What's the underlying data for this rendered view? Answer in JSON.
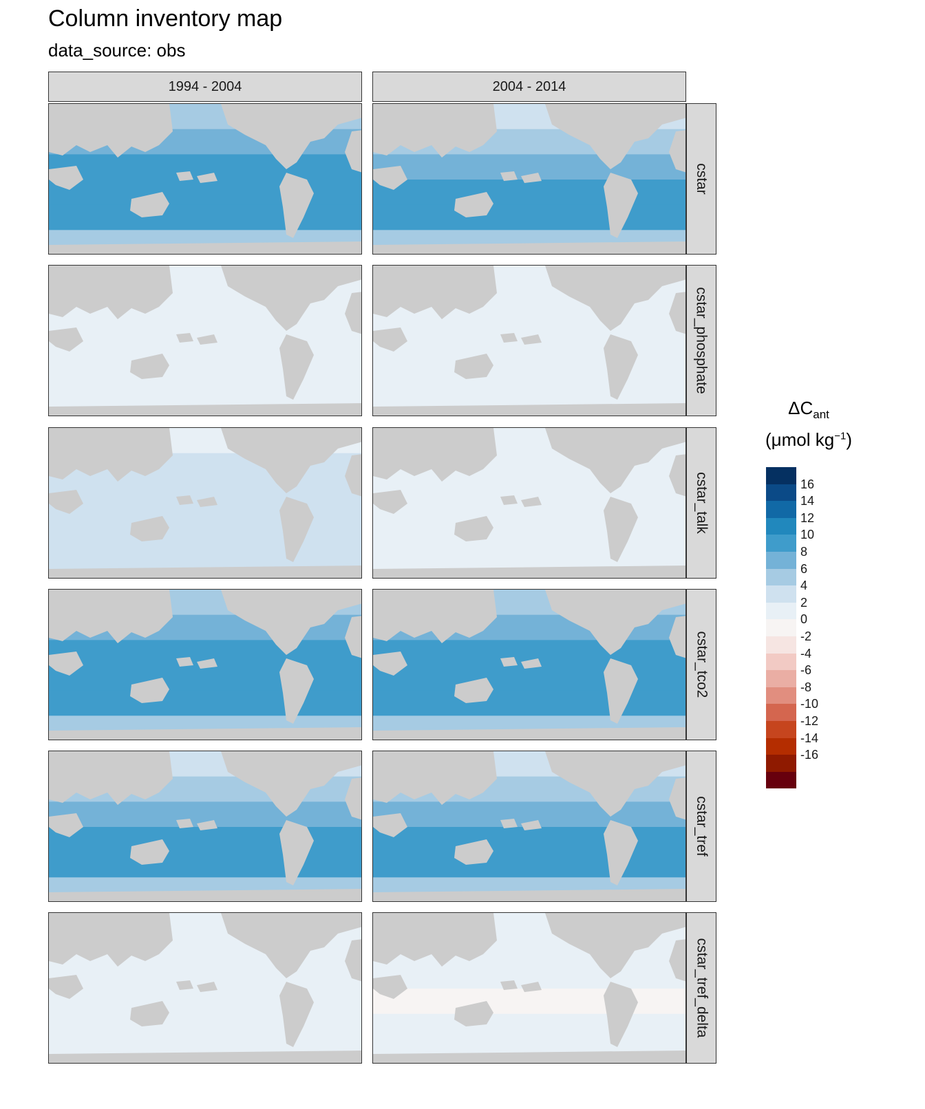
{
  "title": "Column inventory map",
  "subtitle": "data_source: obs",
  "chart_data": {
    "type": "heatmap",
    "title": "Column inventory map",
    "subtitle": "data_source: obs",
    "facet_columns": [
      "1994 - 2004",
      "2004 - 2014"
    ],
    "facet_rows": [
      "cstar",
      "cstar_phosphate",
      "cstar_talk",
      "cstar_tco2",
      "cstar_tref",
      "cstar_tref_delta"
    ],
    "legend": {
      "title_line1": "ΔC",
      "title_sub": "ant",
      "title_line2_pre": "(μmol kg",
      "title_sup": "−1",
      "title_line2_post": ")",
      "placement": "right",
      "breaks": [
        "16",
        "14",
        "12",
        "10",
        "8",
        "6",
        "4",
        "2",
        "0",
        "-2",
        "-4",
        "-6",
        "-8",
        "-10",
        "-12",
        "-14",
        "-16"
      ],
      "colors": [
        "#053061",
        "#0b4a87",
        "#1169a6",
        "#2188bd",
        "#3f9ccb",
        "#74b2d7",
        "#a6cbe3",
        "#cfe1ef",
        "#e8f0f6",
        "#f7f4f3",
        "#f6e5e2",
        "#f2cac4",
        "#eaaea4",
        "#e18e7f",
        "#d4664f",
        "#c6451e",
        "#b42d00",
        "#8f1a00",
        "#67000d"
      ]
    },
    "panel_mean_values": [
      {
        "row": "cstar",
        "column": "1994 - 2004",
        "mean": 9
      },
      {
        "row": "cstar",
        "column": "2004 - 2014",
        "mean": 8
      },
      {
        "row": "cstar_phosphate",
        "column": "1994 - 2004",
        "mean": 0
      },
      {
        "row": "cstar_phosphate",
        "column": "2004 - 2014",
        "mean": -0.5
      },
      {
        "row": "cstar_talk",
        "column": "1994 - 2004",
        "mean": 2
      },
      {
        "row": "cstar_talk",
        "column": "2004 - 2014",
        "mean": 1
      },
      {
        "row": "cstar_tco2",
        "column": "1994 - 2004",
        "mean": 9
      },
      {
        "row": "cstar_tco2",
        "column": "2004 - 2014",
        "mean": 9
      },
      {
        "row": "cstar_tref",
        "column": "1994 - 2004",
        "mean": 8
      },
      {
        "row": "cstar_tref",
        "column": "2004 - 2014",
        "mean": 8
      },
      {
        "row": "cstar_tref_delta",
        "column": "1994 - 2004",
        "mean": 0
      },
      {
        "row": "cstar_tref_delta",
        "column": "2004 - 2014",
        "mean": -1
      }
    ],
    "land_color": "#cccccc"
  }
}
